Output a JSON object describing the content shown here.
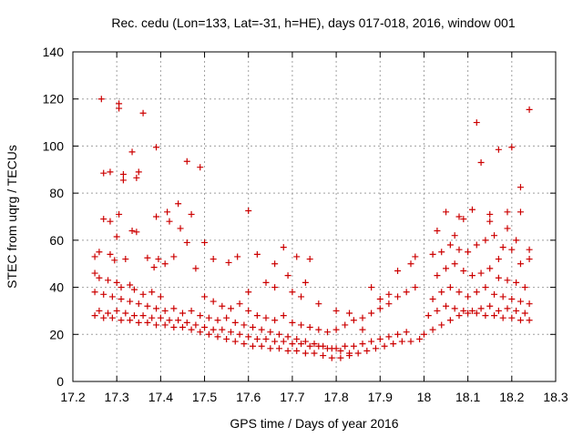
{
  "chart_data": {
    "type": "scatter",
    "title": "Rec. cedu (Lon=133, Lat=-31, h=HE), days 017-018, 2016, window 001",
    "xlabel": "GPS time / Days of year 2016",
    "ylabel": "STEC from uqrg / TECUs",
    "xlim": [
      17.2,
      18.3
    ],
    "ylim": [
      0,
      140
    ],
    "grid": true,
    "marker": "plus",
    "color": "#cc0000",
    "xticks": [
      17.2,
      17.3,
      17.4,
      17.5,
      17.6,
      17.7,
      17.8,
      17.9,
      18.0,
      18.1,
      18.2,
      18.3
    ],
    "xtick_labels": [
      "17.2",
      "17.3",
      "17.4",
      "17.5",
      "17.6",
      "17.7",
      "17.8",
      "17.9",
      "18",
      "18.1",
      "18.2",
      "18.3"
    ],
    "yticks": [
      0,
      20,
      40,
      60,
      80,
      100,
      120,
      140
    ],
    "ytick_labels": [
      "0",
      "20",
      "40",
      "60",
      "80",
      "100",
      "120",
      "140"
    ],
    "series": [
      {
        "name": "STEC",
        "points": [
          [
            17.265,
            120
          ],
          [
            17.305,
            118
          ],
          [
            17.305,
            116
          ],
          [
            17.36,
            114
          ],
          [
            17.39,
            99.5
          ],
          [
            17.335,
            97.5
          ],
          [
            17.46,
            93.5
          ],
          [
            17.49,
            91
          ],
          [
            17.285,
            89
          ],
          [
            17.27,
            88.5
          ],
          [
            17.35,
            89
          ],
          [
            17.315,
            88
          ],
          [
            17.345,
            86.5
          ],
          [
            17.315,
            85.5
          ],
          [
            17.44,
            75.5
          ],
          [
            17.415,
            72
          ],
          [
            17.305,
            71
          ],
          [
            17.39,
            70
          ],
          [
            17.27,
            69
          ],
          [
            17.285,
            68
          ],
          [
            17.47,
            71
          ],
          [
            17.42,
            68
          ],
          [
            17.335,
            64
          ],
          [
            17.345,
            63.5
          ],
          [
            17.3,
            61.5
          ],
          [
            17.445,
            65
          ],
          [
            17.46,
            59
          ],
          [
            17.5,
            59
          ],
          [
            17.26,
            55
          ],
          [
            17.25,
            53
          ],
          [
            17.285,
            54
          ],
          [
            17.32,
            52
          ],
          [
            17.295,
            51.5
          ],
          [
            17.37,
            52.5
          ],
          [
            17.395,
            52
          ],
          [
            17.41,
            50
          ],
          [
            17.385,
            48.5
          ],
          [
            17.43,
            53
          ],
          [
            17.52,
            52
          ],
          [
            17.555,
            50.5
          ],
          [
            17.48,
            48
          ],
          [
            17.6,
            72.5
          ],
          [
            17.575,
            53
          ],
          [
            17.62,
            54
          ],
          [
            17.66,
            50
          ],
          [
            17.68,
            57
          ],
          [
            17.71,
            53
          ],
          [
            17.69,
            45
          ],
          [
            17.73,
            42
          ],
          [
            17.74,
            52
          ],
          [
            17.25,
            46
          ],
          [
            17.26,
            44
          ],
          [
            17.28,
            43
          ],
          [
            17.3,
            42
          ],
          [
            17.31,
            40
          ],
          [
            17.33,
            41
          ],
          [
            17.34,
            39
          ],
          [
            17.36,
            37
          ],
          [
            17.38,
            38
          ],
          [
            17.4,
            36
          ],
          [
            17.25,
            38
          ],
          [
            17.27,
            37
          ],
          [
            17.29,
            36
          ],
          [
            17.31,
            35
          ],
          [
            17.33,
            34
          ],
          [
            17.35,
            33
          ],
          [
            17.37,
            32
          ],
          [
            17.39,
            31
          ],
          [
            17.41,
            30
          ],
          [
            17.43,
            31
          ],
          [
            17.45,
            29
          ],
          [
            17.47,
            30
          ],
          [
            17.49,
            28
          ],
          [
            17.51,
            27
          ],
          [
            17.53,
            26
          ],
          [
            17.55,
            27
          ],
          [
            17.57,
            25
          ],
          [
            17.59,
            24
          ],
          [
            17.61,
            23
          ],
          [
            17.63,
            22
          ],
          [
            17.65,
            21
          ],
          [
            17.67,
            20
          ],
          [
            17.69,
            19
          ],
          [
            17.71,
            18
          ],
          [
            17.73,
            17
          ],
          [
            17.75,
            16
          ],
          [
            17.77,
            15
          ],
          [
            17.79,
            14
          ],
          [
            17.81,
            13
          ],
          [
            17.83,
            12
          ],
          [
            17.25,
            28
          ],
          [
            17.27,
            27
          ],
          [
            17.29,
            27
          ],
          [
            17.31,
            26
          ],
          [
            17.33,
            26
          ],
          [
            17.35,
            25
          ],
          [
            17.37,
            25
          ],
          [
            17.39,
            24
          ],
          [
            17.41,
            24
          ],
          [
            17.43,
            23
          ],
          [
            17.45,
            23
          ],
          [
            17.47,
            22
          ],
          [
            17.49,
            21
          ],
          [
            17.51,
            20
          ],
          [
            17.53,
            19
          ],
          [
            17.55,
            18
          ],
          [
            17.57,
            17
          ],
          [
            17.59,
            16
          ],
          [
            17.61,
            15
          ],
          [
            17.63,
            15
          ],
          [
            17.65,
            14
          ],
          [
            17.67,
            14
          ],
          [
            17.69,
            13
          ],
          [
            17.71,
            13
          ],
          [
            17.73,
            12
          ],
          [
            17.75,
            12
          ],
          [
            17.77,
            11
          ],
          [
            17.79,
            10
          ],
          [
            17.81,
            10
          ],
          [
            17.83,
            11
          ],
          [
            17.85,
            12
          ],
          [
            17.87,
            13
          ],
          [
            17.89,
            14
          ],
          [
            17.91,
            15
          ],
          [
            17.93,
            16
          ],
          [
            17.95,
            17
          ],
          [
            17.97,
            17
          ],
          [
            17.99,
            18
          ],
          [
            17.26,
            30
          ],
          [
            17.28,
            29
          ],
          [
            17.3,
            30
          ],
          [
            17.32,
            29
          ],
          [
            17.34,
            28
          ],
          [
            17.36,
            28
          ],
          [
            17.38,
            27
          ],
          [
            17.4,
            27
          ],
          [
            17.42,
            26
          ],
          [
            17.44,
            26
          ],
          [
            17.46,
            25
          ],
          [
            17.48,
            24
          ],
          [
            17.5,
            23
          ],
          [
            17.52,
            22
          ],
          [
            17.54,
            22
          ],
          [
            17.56,
            21
          ],
          [
            17.58,
            20
          ],
          [
            17.6,
            19
          ],
          [
            17.62,
            18
          ],
          [
            17.64,
            18
          ],
          [
            17.66,
            17
          ],
          [
            17.68,
            17
          ],
          [
            17.7,
            16
          ],
          [
            17.72,
            16
          ],
          [
            17.74,
            15
          ],
          [
            17.76,
            15
          ],
          [
            17.78,
            14
          ],
          [
            17.8,
            14
          ],
          [
            17.82,
            15
          ],
          [
            17.84,
            15
          ],
          [
            17.86,
            16
          ],
          [
            17.88,
            17
          ],
          [
            17.9,
            18
          ],
          [
            17.92,
            19
          ],
          [
            17.94,
            20
          ],
          [
            17.96,
            21
          ],
          [
            17.5,
            36
          ],
          [
            17.52,
            34
          ],
          [
            17.54,
            32
          ],
          [
            17.56,
            31
          ],
          [
            17.58,
            33
          ],
          [
            17.6,
            30
          ],
          [
            17.62,
            28
          ],
          [
            17.64,
            27
          ],
          [
            17.66,
            26
          ],
          [
            17.68,
            28
          ],
          [
            17.7,
            25
          ],
          [
            17.72,
            24
          ],
          [
            17.74,
            23
          ],
          [
            17.76,
            22
          ],
          [
            17.78,
            21
          ],
          [
            17.8,
            22
          ],
          [
            17.82,
            24
          ],
          [
            17.84,
            26
          ],
          [
            17.86,
            27
          ],
          [
            17.88,
            29
          ],
          [
            17.9,
            31
          ],
          [
            17.92,
            33
          ],
          [
            17.94,
            36
          ],
          [
            17.96,
            38
          ],
          [
            17.98,
            40
          ],
          [
            17.6,
            38
          ],
          [
            17.64,
            42
          ],
          [
            17.66,
            40
          ],
          [
            17.7,
            38
          ],
          [
            17.72,
            36
          ],
          [
            17.76,
            33
          ],
          [
            17.8,
            30
          ],
          [
            17.88,
            40
          ],
          [
            17.9,
            35
          ],
          [
            17.92,
            37
          ],
          [
            17.94,
            47
          ],
          [
            17.97,
            50
          ],
          [
            17.98,
            53
          ],
          [
            17.83,
            29
          ],
          [
            17.86,
            22
          ],
          [
            18.0,
            20
          ],
          [
            18.02,
            22
          ],
          [
            18.04,
            24
          ],
          [
            18.06,
            26
          ],
          [
            18.08,
            28
          ],
          [
            18.1,
            29
          ],
          [
            18.12,
            29
          ],
          [
            18.14,
            28
          ],
          [
            18.16,
            28
          ],
          [
            18.18,
            27
          ],
          [
            18.2,
            27
          ],
          [
            18.22,
            26
          ],
          [
            18.24,
            26
          ],
          [
            18.01,
            28
          ],
          [
            18.03,
            30
          ],
          [
            18.05,
            32
          ],
          [
            18.07,
            31
          ],
          [
            18.09,
            30
          ],
          [
            18.11,
            30
          ],
          [
            18.13,
            31
          ],
          [
            18.15,
            32
          ],
          [
            18.17,
            30
          ],
          [
            18.19,
            31
          ],
          [
            18.21,
            30
          ],
          [
            18.23,
            29
          ],
          [
            18.02,
            35
          ],
          [
            18.04,
            38
          ],
          [
            18.06,
            40
          ],
          [
            18.08,
            38
          ],
          [
            18.1,
            36
          ],
          [
            18.12,
            38
          ],
          [
            18.14,
            40
          ],
          [
            18.16,
            37
          ],
          [
            18.18,
            36
          ],
          [
            18.2,
            35
          ],
          [
            18.22,
            34
          ],
          [
            18.24,
            33
          ],
          [
            18.03,
            45
          ],
          [
            18.05,
            48
          ],
          [
            18.07,
            50
          ],
          [
            18.09,
            47
          ],
          [
            18.11,
            45
          ],
          [
            18.13,
            46
          ],
          [
            18.15,
            48
          ],
          [
            18.17,
            44
          ],
          [
            18.19,
            43
          ],
          [
            18.21,
            42
          ],
          [
            18.23,
            40
          ],
          [
            18.02,
            54
          ],
          [
            18.04,
            55
          ],
          [
            18.06,
            58
          ],
          [
            18.08,
            56
          ],
          [
            18.1,
            55
          ],
          [
            18.12,
            58
          ],
          [
            18.14,
            60
          ],
          [
            18.16,
            62
          ],
          [
            18.18,
            57
          ],
          [
            18.2,
            56
          ],
          [
            18.22,
            50
          ],
          [
            18.24,
            52
          ],
          [
            18.03,
            64
          ],
          [
            18.05,
            72
          ],
          [
            18.08,
            70
          ],
          [
            18.09,
            69
          ],
          [
            18.11,
            73
          ],
          [
            18.15,
            71
          ],
          [
            18.19,
            72
          ],
          [
            18.22,
            72
          ],
          [
            18.24,
            56
          ],
          [
            18.12,
            110
          ],
          [
            18.13,
            93
          ],
          [
            18.17,
            98.5
          ],
          [
            18.2,
            99.5
          ],
          [
            18.22,
            82.5
          ],
          [
            18.24,
            115.5
          ],
          [
            18.19,
            65
          ],
          [
            18.21,
            60
          ],
          [
            18.07,
            62
          ],
          [
            18.15,
            68
          ],
          [
            18.17,
            52
          ]
        ]
      }
    ]
  }
}
